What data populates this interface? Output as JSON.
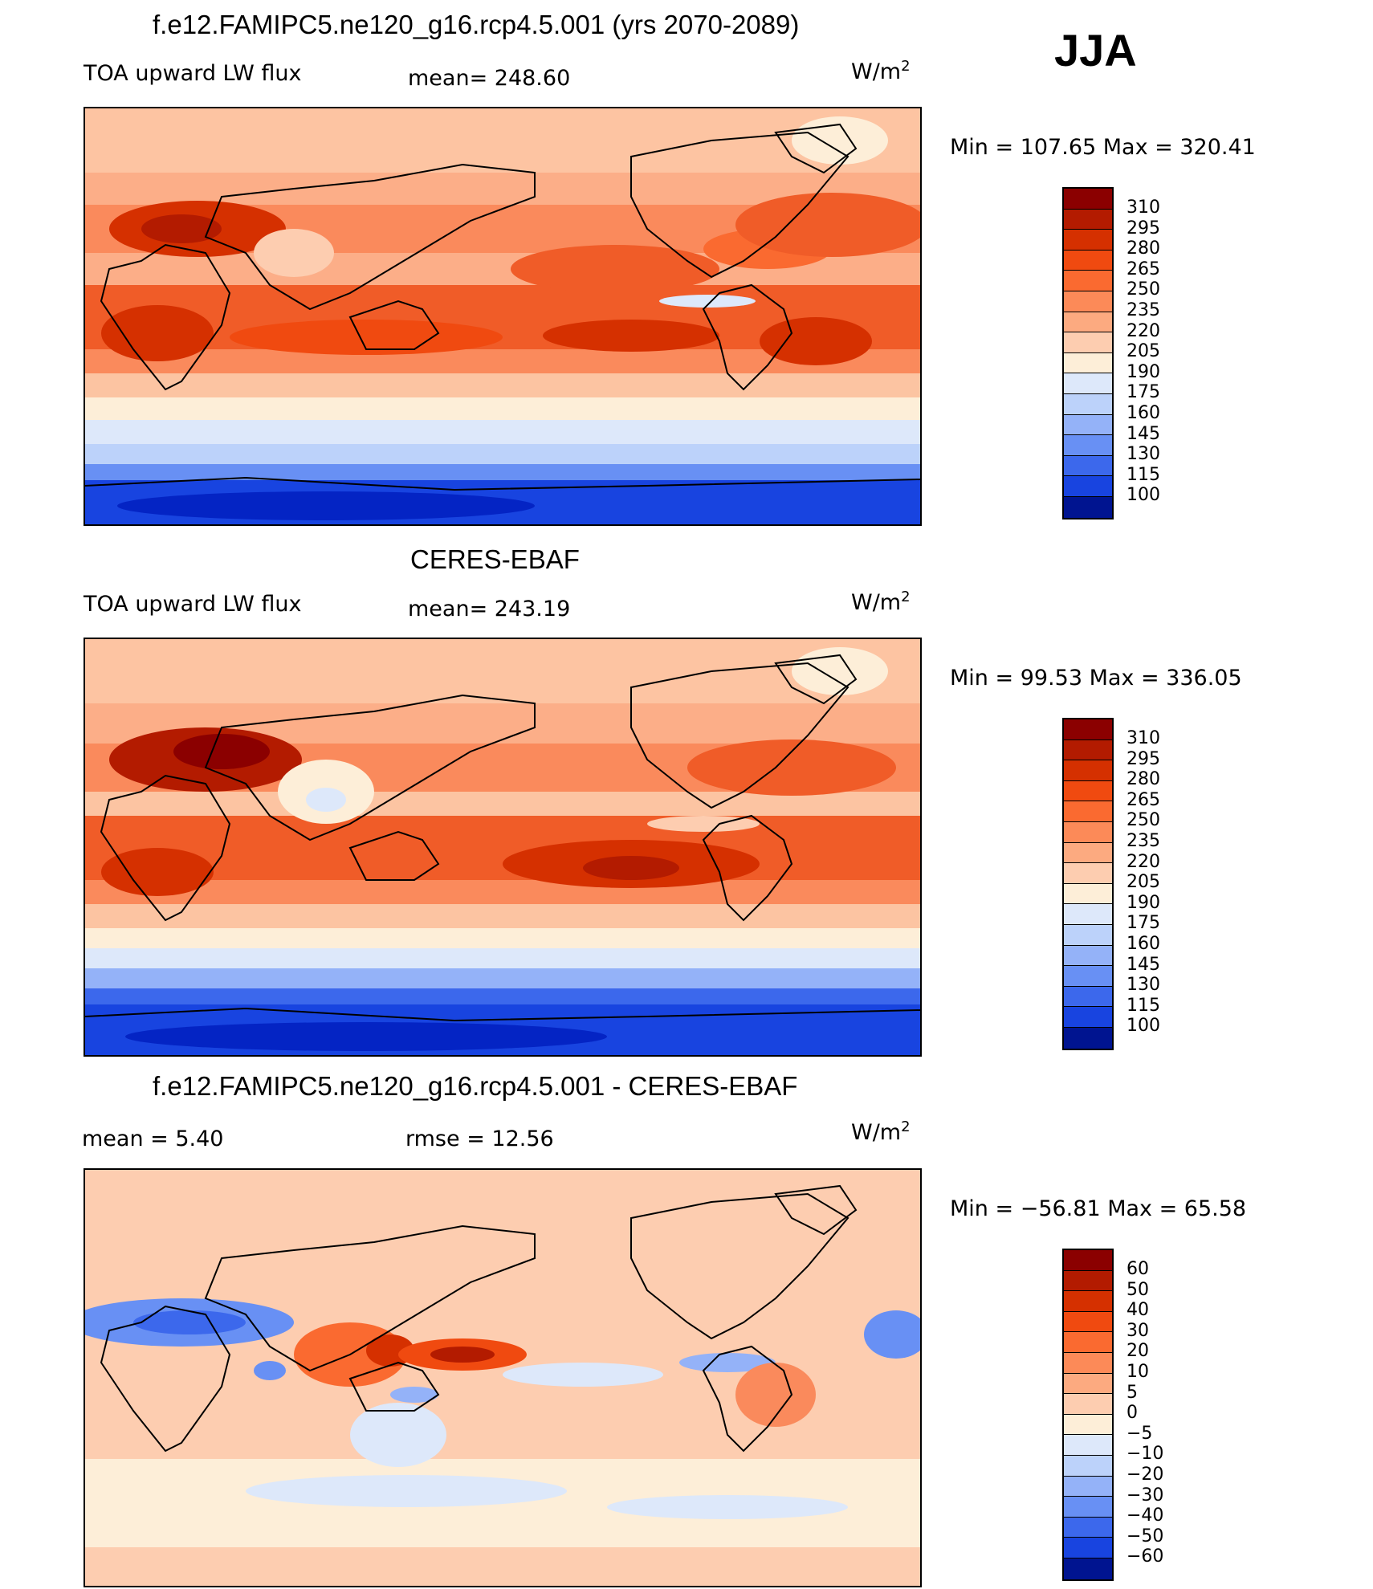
{
  "season": "JJA",
  "panels": [
    {
      "title": "f.e12.FAMIPC5.ne120_g16.rcp4.5.001 (yrs 2070-2089)",
      "left_label": "TOA upward LW flux",
      "center_label": "mean=  248.60",
      "unit": "W/m",
      "unit_exp": "2",
      "minmax": "Min  =  107.65  Max  =  320.41",
      "levels": [
        "310",
        "295",
        "280",
        "265",
        "250",
        "235",
        "220",
        "205",
        "190",
        "175",
        "160",
        "145",
        "130",
        "115",
        "100"
      ]
    },
    {
      "title": "CERES-EBAF",
      "left_label": "TOA upward LW flux",
      "center_label": "mean=  243.19",
      "unit": "W/m",
      "unit_exp": "2",
      "minmax": "Min  =    99.53  Max  =  336.05",
      "levels": [
        "310",
        "295",
        "280",
        "265",
        "250",
        "235",
        "220",
        "205",
        "190",
        "175",
        "160",
        "145",
        "130",
        "115",
        "100"
      ]
    },
    {
      "title": "f.e12.FAMIPC5.ne120_g16.rcp4.5.001 - CERES-EBAF",
      "left_label": "mean  =      5.40",
      "center_label": "rmse  =     12.56",
      "unit": "W/m",
      "unit_exp": "2",
      "minmax": "Min  =  −56.81  Max  =    65.58",
      "levels": [
        "60",
        "50",
        "40",
        "30",
        "20",
        "10",
        "5",
        "0",
        "−5",
        "−10",
        "−20",
        "−30",
        "−40",
        "−50",
        "−60"
      ]
    }
  ],
  "colors": {
    "abs_palette": [
      "#8b0000",
      "#b31b00",
      "#d53000",
      "#f04a10",
      "#fa6a30",
      "#fc8a58",
      "#fcaa80",
      "#fdcdb0",
      "#fdeed8",
      "#dde8fa",
      "#bcd2fa",
      "#94b2f8",
      "#6890f4",
      "#3c68ec",
      "#1844e0",
      "#0424c4",
      "#001490"
    ],
    "diff_palette": [
      "#8b0000",
      "#b31b00",
      "#d53000",
      "#f04a10",
      "#fa6a30",
      "#fc8a58",
      "#fcaa80",
      "#fdcdb0",
      "#fdeed8",
      "#dde8fa",
      "#bcd2fa",
      "#94b2f8",
      "#6890f4",
      "#3c68ec",
      "#1844e0",
      "#0424c4",
      "#001490"
    ]
  }
}
